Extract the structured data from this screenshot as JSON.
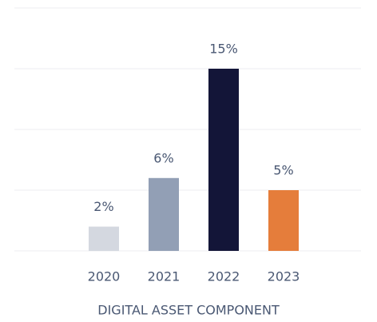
{
  "chart_data": {
    "type": "bar",
    "categories": [
      "2020",
      "2021",
      "2022",
      "2023"
    ],
    "values": [
      2,
      6,
      15,
      5
    ],
    "value_labels": [
      "2%",
      "6%",
      "15%",
      "5%"
    ],
    "colors": [
      "#d4d8e0",
      "#929fb5",
      "#131538",
      "#e57d3b"
    ],
    "xlabel": "DIGITAL ASSET COMPONENT",
    "ylim": [
      0,
      20
    ],
    "yticks": [
      0,
      5,
      10,
      15,
      20
    ],
    "grid": true
  }
}
